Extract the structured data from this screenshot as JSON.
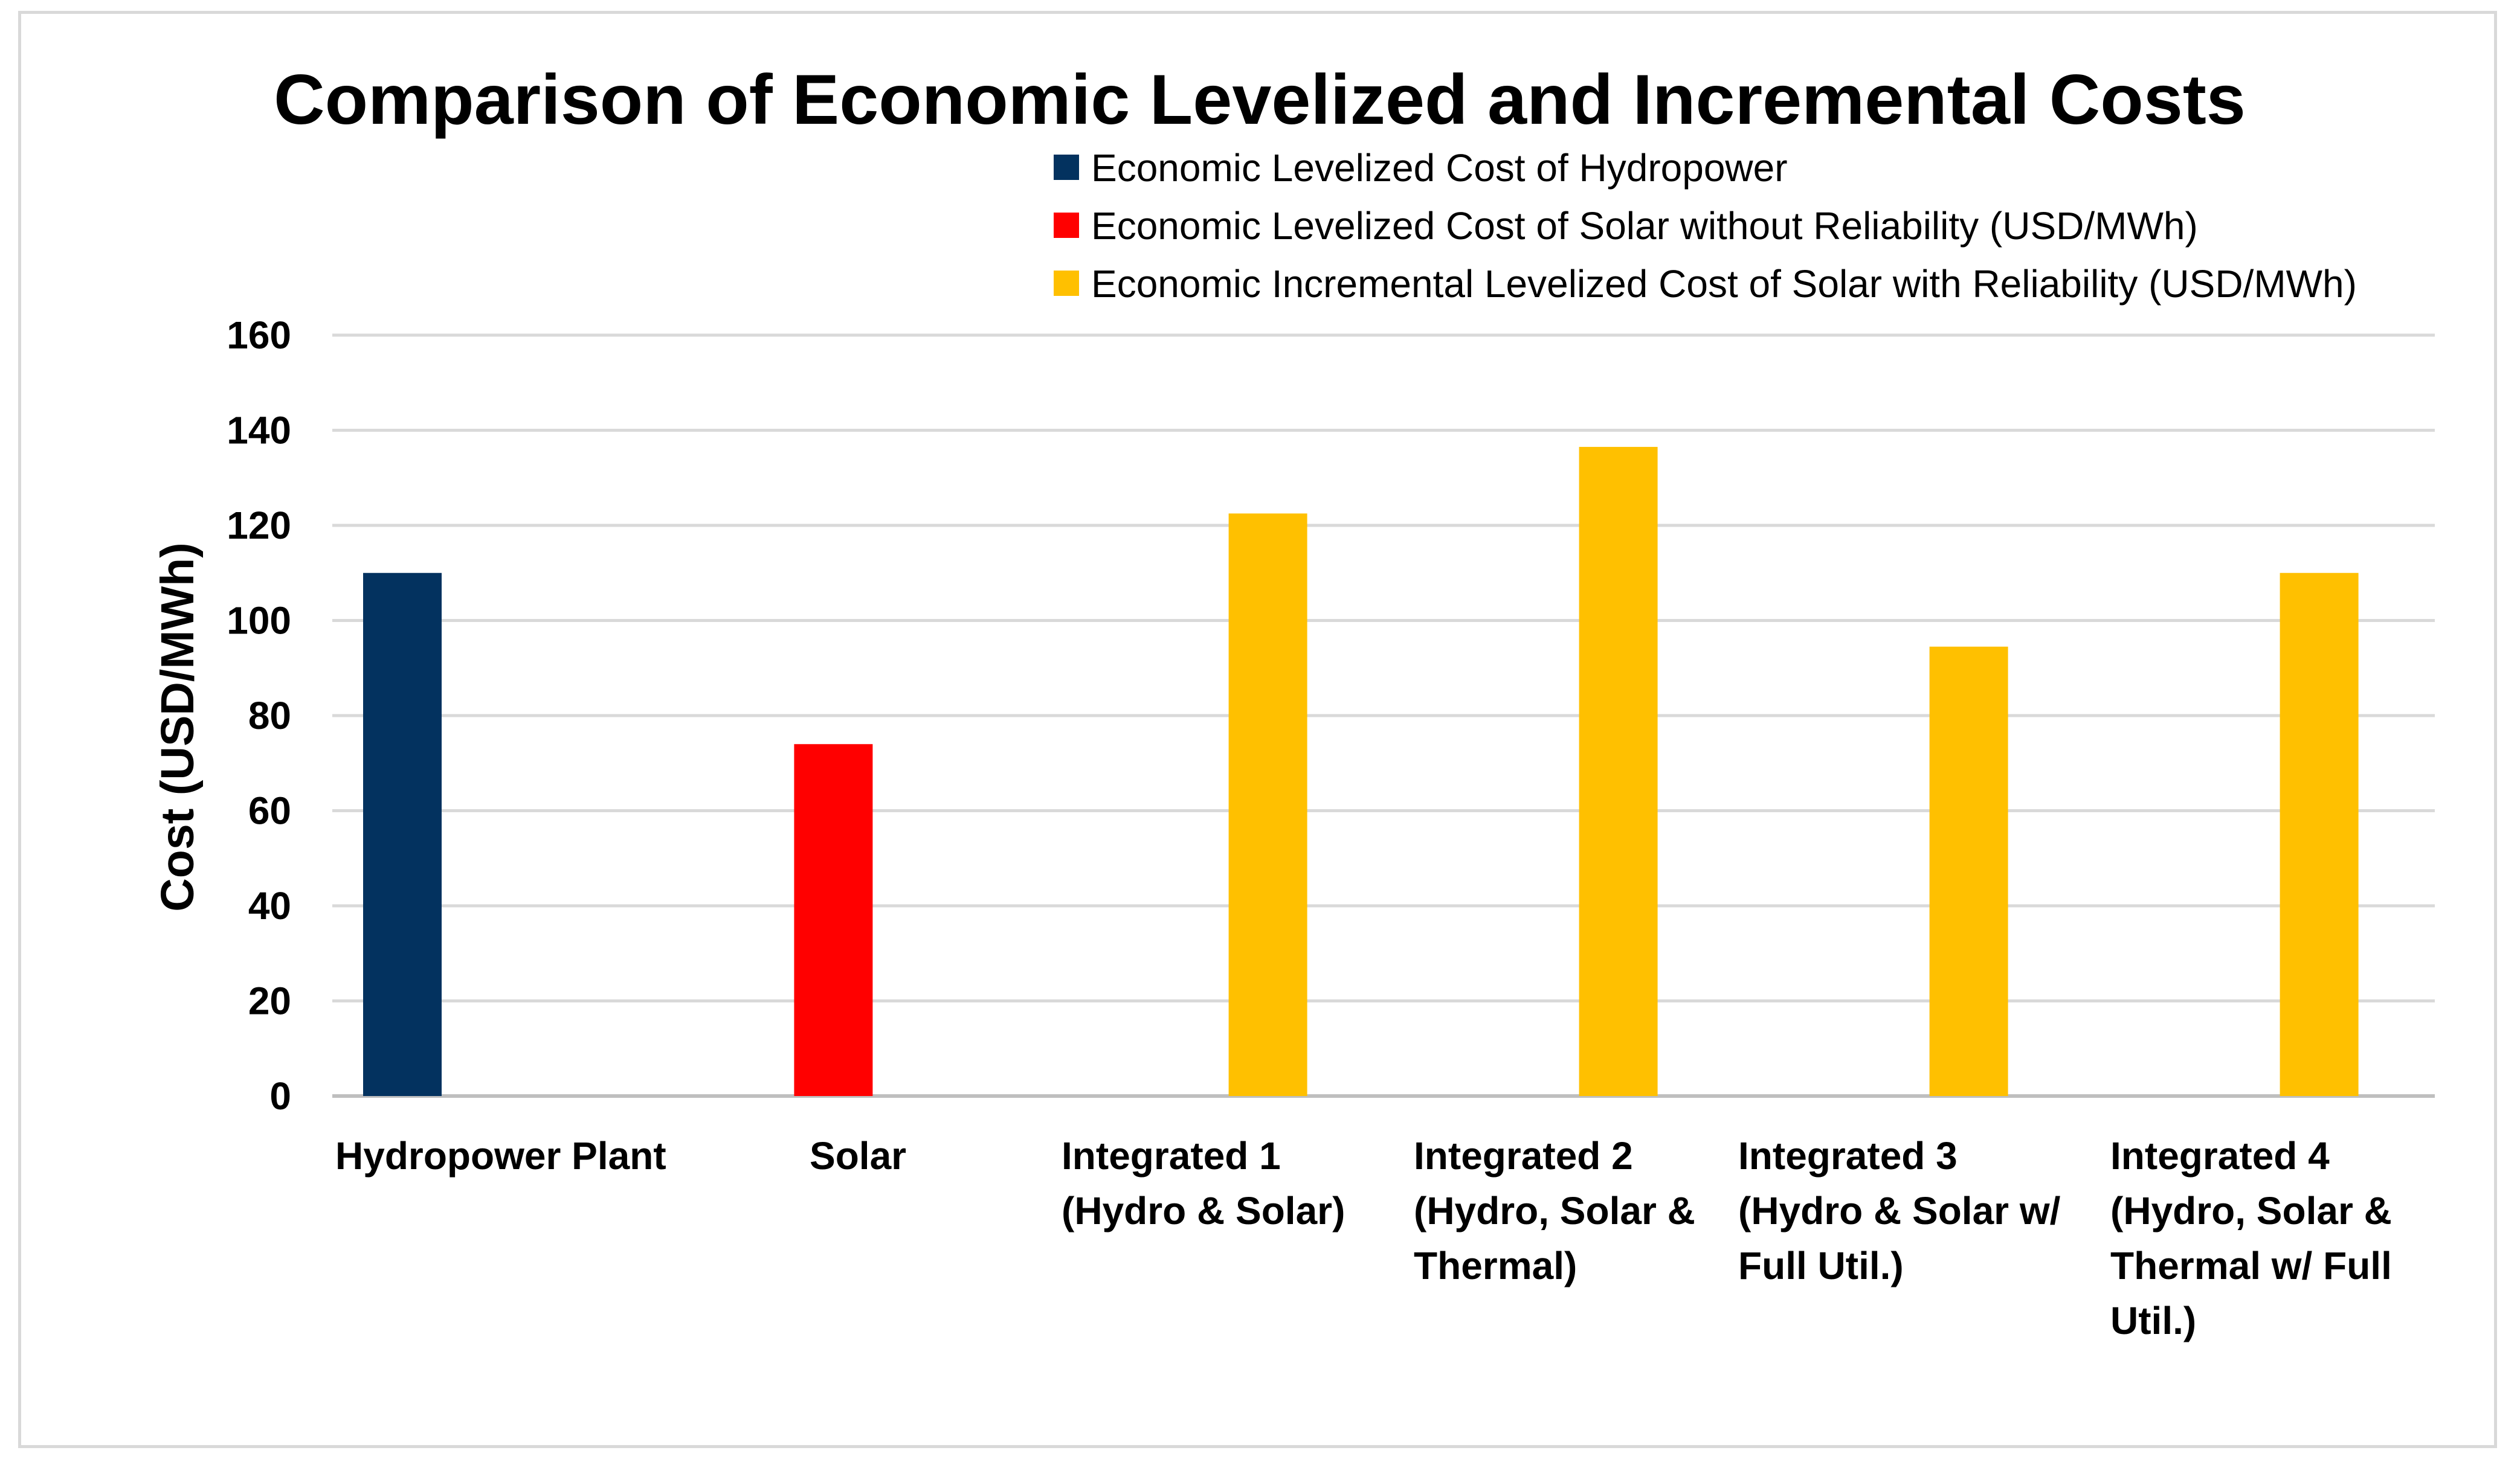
{
  "chart_data": {
    "type": "bar",
    "title": "Comparison of Economic Levelized and Incremental Costs",
    "ylabel": "Cost (USD/MWh)",
    "xlabel": "",
    "ylim": [
      0,
      160
    ],
    "yticks": [
      0,
      20,
      40,
      60,
      80,
      100,
      120,
      140,
      160
    ],
    "grid": true,
    "legend_position": "top-right",
    "categories": [
      [
        "Hydropower Plant"
      ],
      [
        "Solar"
      ],
      [
        "Integrated 1",
        "(Hydro & Solar)"
      ],
      [
        "Integrated 2",
        "(Hydro, Solar &",
        "Thermal)"
      ],
      [
        "Integrated 3",
        "(Hydro & Solar w/",
        "Full Util.)"
      ],
      [
        "Integrated 4",
        "(Hydro, Solar &",
        "Thermal w/ Full",
        "Util.)"
      ]
    ],
    "series": [
      {
        "name": "Economic Levelized Cost of Hydropower",
        "color": "#03325f",
        "values": [
          110,
          null,
          null,
          null,
          null,
          null
        ]
      },
      {
        "name": "Economic Levelized Cost of Solar without Reliability (USD/MWh)",
        "color": "#ff0000",
        "values": [
          null,
          74,
          null,
          null,
          null,
          null
        ]
      },
      {
        "name": "Economic Incremental Levelized Cost of Solar with Reliability (USD/MWh)",
        "color": "#ffc000",
        "values": [
          null,
          null,
          122.5,
          136.5,
          94.5,
          110
        ]
      }
    ]
  }
}
